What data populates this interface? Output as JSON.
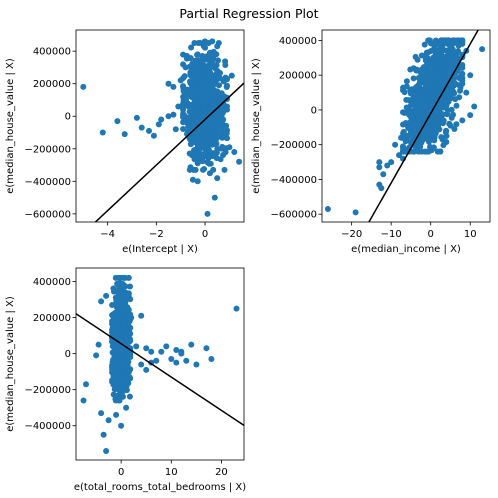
{
  "figure": {
    "title": "Partial Regression Plot",
    "colors": {
      "points": "#1f77b4",
      "fit_line": "#000000",
      "axes": "#000000",
      "background": "#ffffff"
    }
  },
  "chart_data": [
    {
      "type": "scatter",
      "title": "",
      "xlabel": "e(Intercept | X)",
      "ylabel": "e(median_house_value | X)",
      "xlim": [
        -5.3,
        1.6
      ],
      "ylim": [
        -650000,
        530000
      ],
      "xticks": [
        -4,
        -2,
        0
      ],
      "yticks": [
        -600000,
        -400000,
        -200000,
        0,
        200000,
        400000
      ],
      "fit_line": {
        "slope": 140000,
        "intercept": -20000
      },
      "cluster": {
        "x_range": [
          -0.9,
          0.9
        ],
        "y_range": [
          -330000,
          450000
        ]
      },
      "points": [
        [
          -5.0,
          180000
        ],
        [
          -4.2,
          -100000
        ],
        [
          -3.6,
          -30000
        ],
        [
          -3.3,
          -110000
        ],
        [
          -2.8,
          -10000
        ],
        [
          -2.6,
          -70000
        ],
        [
          -2.3,
          -90000
        ],
        [
          -2.1,
          -120000
        ],
        [
          -1.9,
          -50000
        ],
        [
          -1.8,
          -20000
        ],
        [
          -1.5,
          0
        ],
        [
          -1.3,
          10000
        ],
        [
          -1.2,
          -80000
        ],
        [
          -1.1,
          60000
        ],
        [
          -1.5,
          200000
        ],
        [
          -1.3,
          180000
        ],
        [
          -1.0,
          220000
        ],
        [
          -0.8,
          300000
        ],
        [
          -0.6,
          260000
        ],
        [
          -0.3,
          380000
        ],
        [
          0.0,
          460000
        ],
        [
          0.3,
          460000
        ],
        [
          0.5,
          430000
        ],
        [
          -0.5,
          -390000
        ],
        [
          -0.3,
          -400000
        ],
        [
          0.5,
          -380000
        ],
        [
          0.2,
          -350000
        ],
        [
          0.4,
          -500000
        ],
        [
          0.1,
          -600000
        ],
        [
          0.8,
          -330000
        ],
        [
          1.0,
          -190000
        ],
        [
          1.2,
          -220000
        ],
        [
          1.4,
          -280000
        ],
        [
          0.9,
          60000
        ],
        [
          1.1,
          250000
        ]
      ]
    },
    {
      "type": "scatter",
      "title": "",
      "xlabel": "e(median_income | X)",
      "ylabel": "e(median_house_value | X)",
      "xlim": [
        -27.5,
        15
      ],
      "ylim": [
        -645000,
        460000
      ],
      "xticks": [
        -20,
        -10,
        0,
        10
      ],
      "yticks": [
        -600000,
        -400000,
        -200000,
        0,
        200000,
        400000
      ],
      "fit_line": {
        "slope": 40000,
        "intercept": -20000
      },
      "cluster": {
        "x_range": [
          -7,
          8
        ],
        "y_range": [
          -240000,
          400000
        ]
      },
      "points": [
        [
          -26,
          -570000
        ],
        [
          -19,
          -590000
        ],
        [
          -13,
          -300000
        ],
        [
          -13,
          -330000
        ],
        [
          -13,
          -430000
        ],
        [
          -12.5,
          -450000
        ],
        [
          -12,
          -370000
        ],
        [
          -11,
          -320000
        ],
        [
          -10,
          -300000
        ],
        [
          -8,
          -260000
        ],
        [
          -7,
          -280000
        ],
        [
          -9,
          -200000
        ],
        [
          -7.5,
          -160000
        ],
        [
          -6,
          -150000
        ],
        [
          -5,
          -40000
        ],
        [
          -4,
          0
        ],
        [
          -3,
          20000
        ],
        [
          -2,
          90000
        ],
        [
          -1,
          130000
        ],
        [
          0,
          240000
        ],
        [
          -1,
          330000
        ],
        [
          1,
          380000
        ],
        [
          3,
          390000
        ],
        [
          5,
          360000
        ],
        [
          9,
          340000
        ],
        [
          13,
          350000
        ],
        [
          10,
          200000
        ],
        [
          9,
          100000
        ],
        [
          11,
          20000
        ],
        [
          10,
          -30000
        ],
        [
          8,
          -60000
        ],
        [
          6,
          -110000
        ],
        [
          4,
          -150000
        ],
        [
          5,
          -90000
        ],
        [
          3,
          -170000
        ]
      ]
    },
    {
      "type": "scatter",
      "title": "",
      "xlabel": "e(total_rooms_total_bedrooms | X)",
      "ylabel": "e(median_house_value | X)",
      "xlim": [
        -9,
        24.5
      ],
      "ylim": [
        -590000,
        475000
      ],
      "xticks": [
        0,
        10,
        20
      ],
      "yticks": [
        -400000,
        -200000,
        0,
        200000,
        400000
      ],
      "fit_line": {
        "slope": -18500,
        "intercept": 55000
      },
      "cluster": {
        "x_range": [
          -1.8,
          1.8
        ],
        "y_range": [
          -260000,
          420000
        ]
      },
      "points": [
        [
          23,
          250000
        ],
        [
          -7,
          -170000
        ],
        [
          -7.5,
          -260000
        ],
        [
          -4,
          -330000
        ],
        [
          -3.5,
          -450000
        ],
        [
          -3,
          -540000
        ],
        [
          -2.5,
          -370000
        ],
        [
          0,
          -400000
        ],
        [
          -1,
          -340000
        ],
        [
          1,
          -300000
        ],
        [
          -4,
          290000
        ],
        [
          -3,
          320000
        ],
        [
          -5,
          -10000
        ],
        [
          -4.5,
          50000
        ],
        [
          2,
          200000
        ],
        [
          4,
          210000
        ],
        [
          3,
          40000
        ],
        [
          5,
          30000
        ],
        [
          6,
          10000
        ],
        [
          7,
          -40000
        ],
        [
          8,
          10000
        ],
        [
          9,
          40000
        ],
        [
          10,
          -30000
        ],
        [
          11,
          20000
        ],
        [
          12,
          10000
        ],
        [
          13,
          -40000
        ],
        [
          14,
          50000
        ],
        [
          15,
          -60000
        ],
        [
          17,
          30000
        ],
        [
          18,
          -30000
        ],
        [
          4,
          -60000
        ],
        [
          5,
          -90000
        ],
        [
          6,
          -50000
        ],
        [
          11,
          -50000
        ],
        [
          12,
          0
        ]
      ]
    }
  ]
}
